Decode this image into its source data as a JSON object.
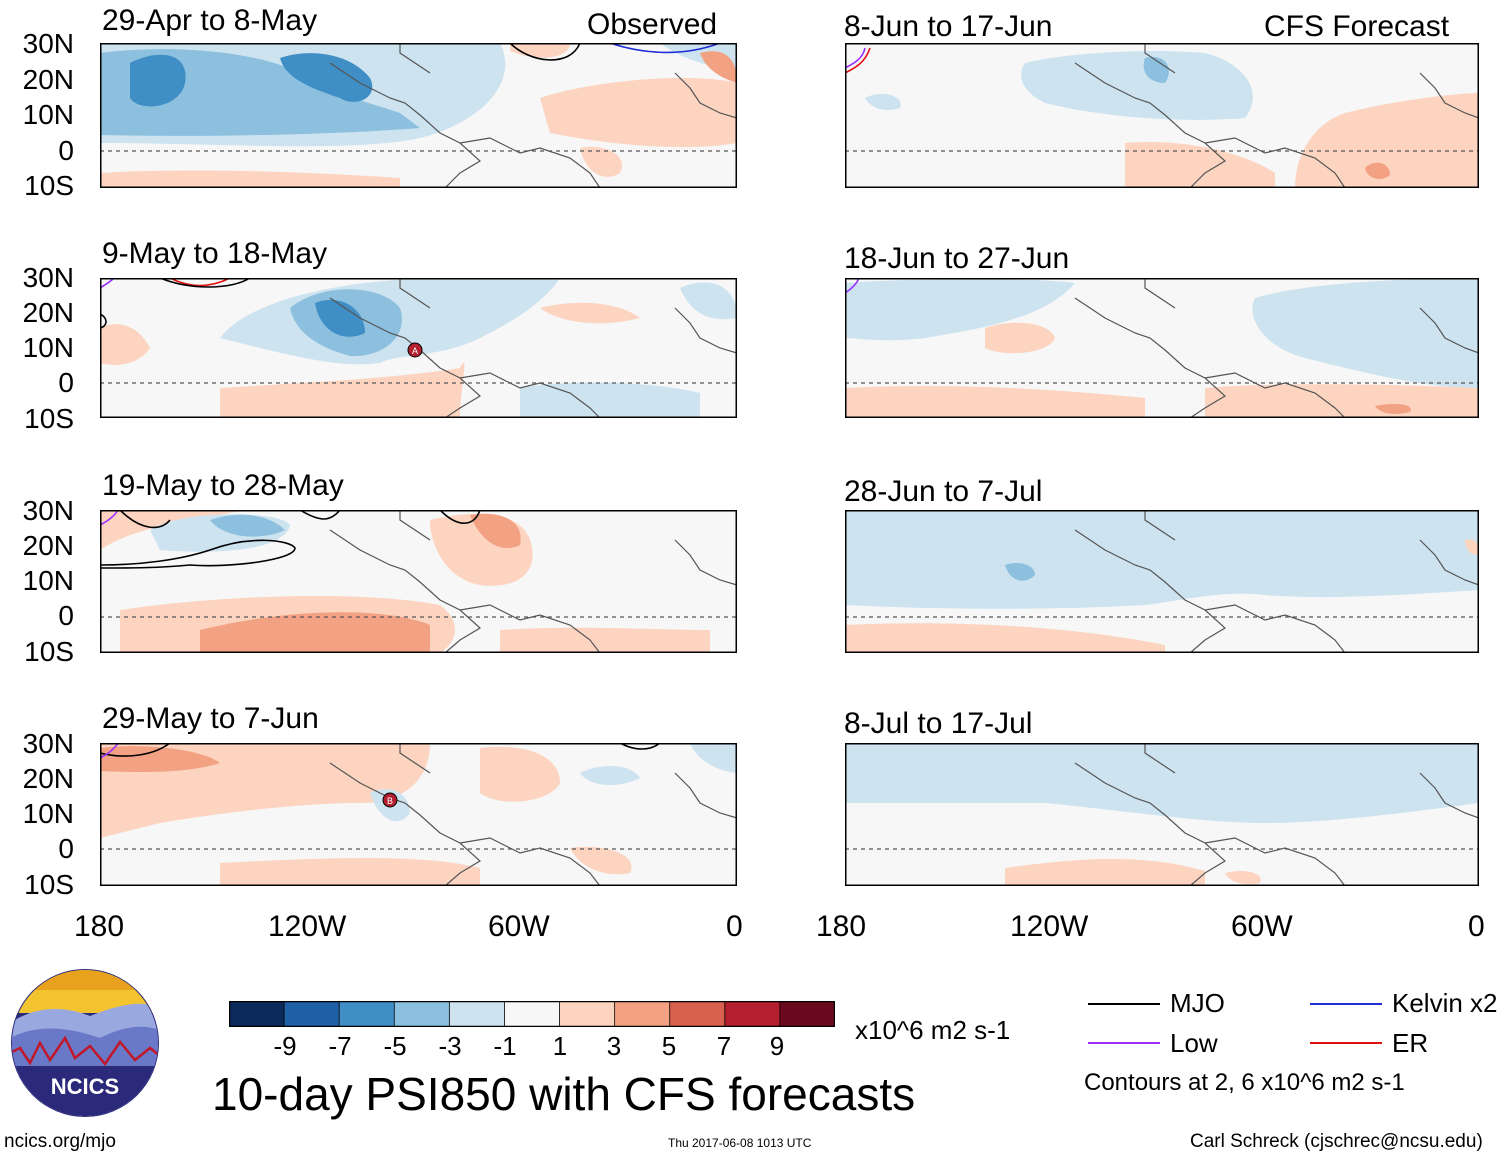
{
  "labels": {
    "observed": "Observed",
    "forecast": "CFS Forecast",
    "main_title": "10-day PSI850 with CFS forecasts",
    "units": "x10^6 m2 s-1",
    "contours_note": "Contours at 2, 6 x10^6 m2 s-1",
    "site": "ncics.org/mjo",
    "timestamp": "Thu 2017-06-08 1013 UTC",
    "credit": "Carl Schreck (cjschrec@ncsu.edu)",
    "logo_text": "NCICS"
  },
  "panels_left": [
    {
      "title": "29-Apr to 8-May"
    },
    {
      "title": "9-May to 18-May"
    },
    {
      "title": "19-May to 28-May"
    },
    {
      "title": "29-May to 7-Jun"
    }
  ],
  "panels_right": [
    {
      "title": "8-Jun to 17-Jun"
    },
    {
      "title": "18-Jun to 27-Jun"
    },
    {
      "title": "28-Jun to 7-Jul"
    },
    {
      "title": "8-Jul to 17-Jul"
    }
  ],
  "lat_ticks": [
    "30N",
    "20N",
    "10N",
    "0",
    "10S"
  ],
  "lon_ticks": [
    "180",
    "120W",
    "60W",
    "0"
  ],
  "storm_markers": [
    "A",
    "B"
  ],
  "colorbar": {
    "colors": [
      "#0b2a5a",
      "#1f5fa6",
      "#3f8ec6",
      "#8cc0de",
      "#cde3f0",
      "#f7f7f7",
      "#fcd4c0",
      "#f2a283",
      "#d9604e",
      "#b31f2e",
      "#6b0a1e"
    ],
    "ticks": [
      "-9",
      "-7",
      "-5",
      "-3",
      "-1",
      "1",
      "3",
      "5",
      "7",
      "9"
    ]
  },
  "legend": [
    {
      "label": "MJO",
      "color": "#000000"
    },
    {
      "label": "Kelvin x2",
      "color": "#1f2fd6"
    },
    {
      "label": "Low",
      "color": "#9b30ff"
    },
    {
      "label": "ER",
      "color": "#e01010"
    }
  ]
}
